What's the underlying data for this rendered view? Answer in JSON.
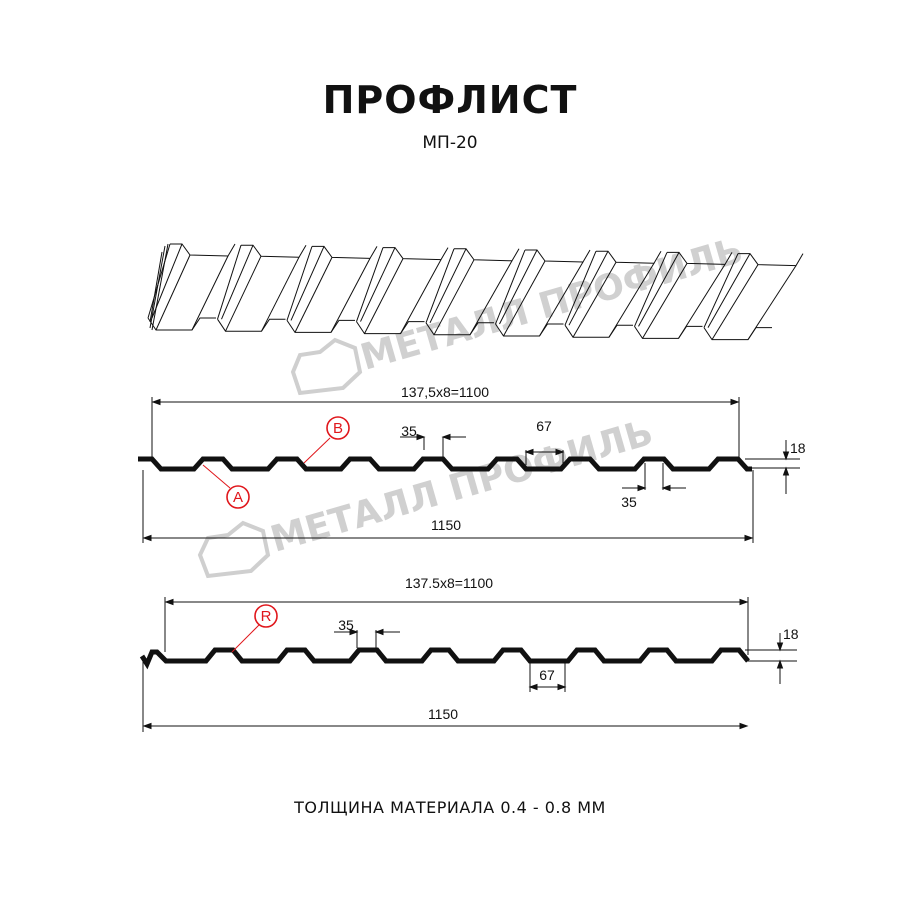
{
  "header": {
    "title": "ПРОФЛИСТ",
    "subtitle": "МП-20"
  },
  "watermark": {
    "text": "МЕТАЛЛ ПРОФИЛЬ"
  },
  "profile_1": {
    "pitch_dimension": "137,5x8=1100",
    "total_width": "1150",
    "crest_width": "35",
    "crest_width_2": "35",
    "valley_width": "67",
    "height": "18",
    "marker_a": "A",
    "marker_b": "B"
  },
  "profile_2": {
    "pitch_dimension": "137.5x8=1100",
    "total_width": "1150",
    "crest_width": "35",
    "valley_width": "67",
    "height": "18",
    "marker_r": "R"
  },
  "footer": {
    "thickness": "ТОЛЩИНА МАТЕРИАЛА 0.4 - 0.8 ММ"
  },
  "colors": {
    "line": "#111111",
    "marker": "#e0161b",
    "watermark": "#c8c8c8"
  }
}
